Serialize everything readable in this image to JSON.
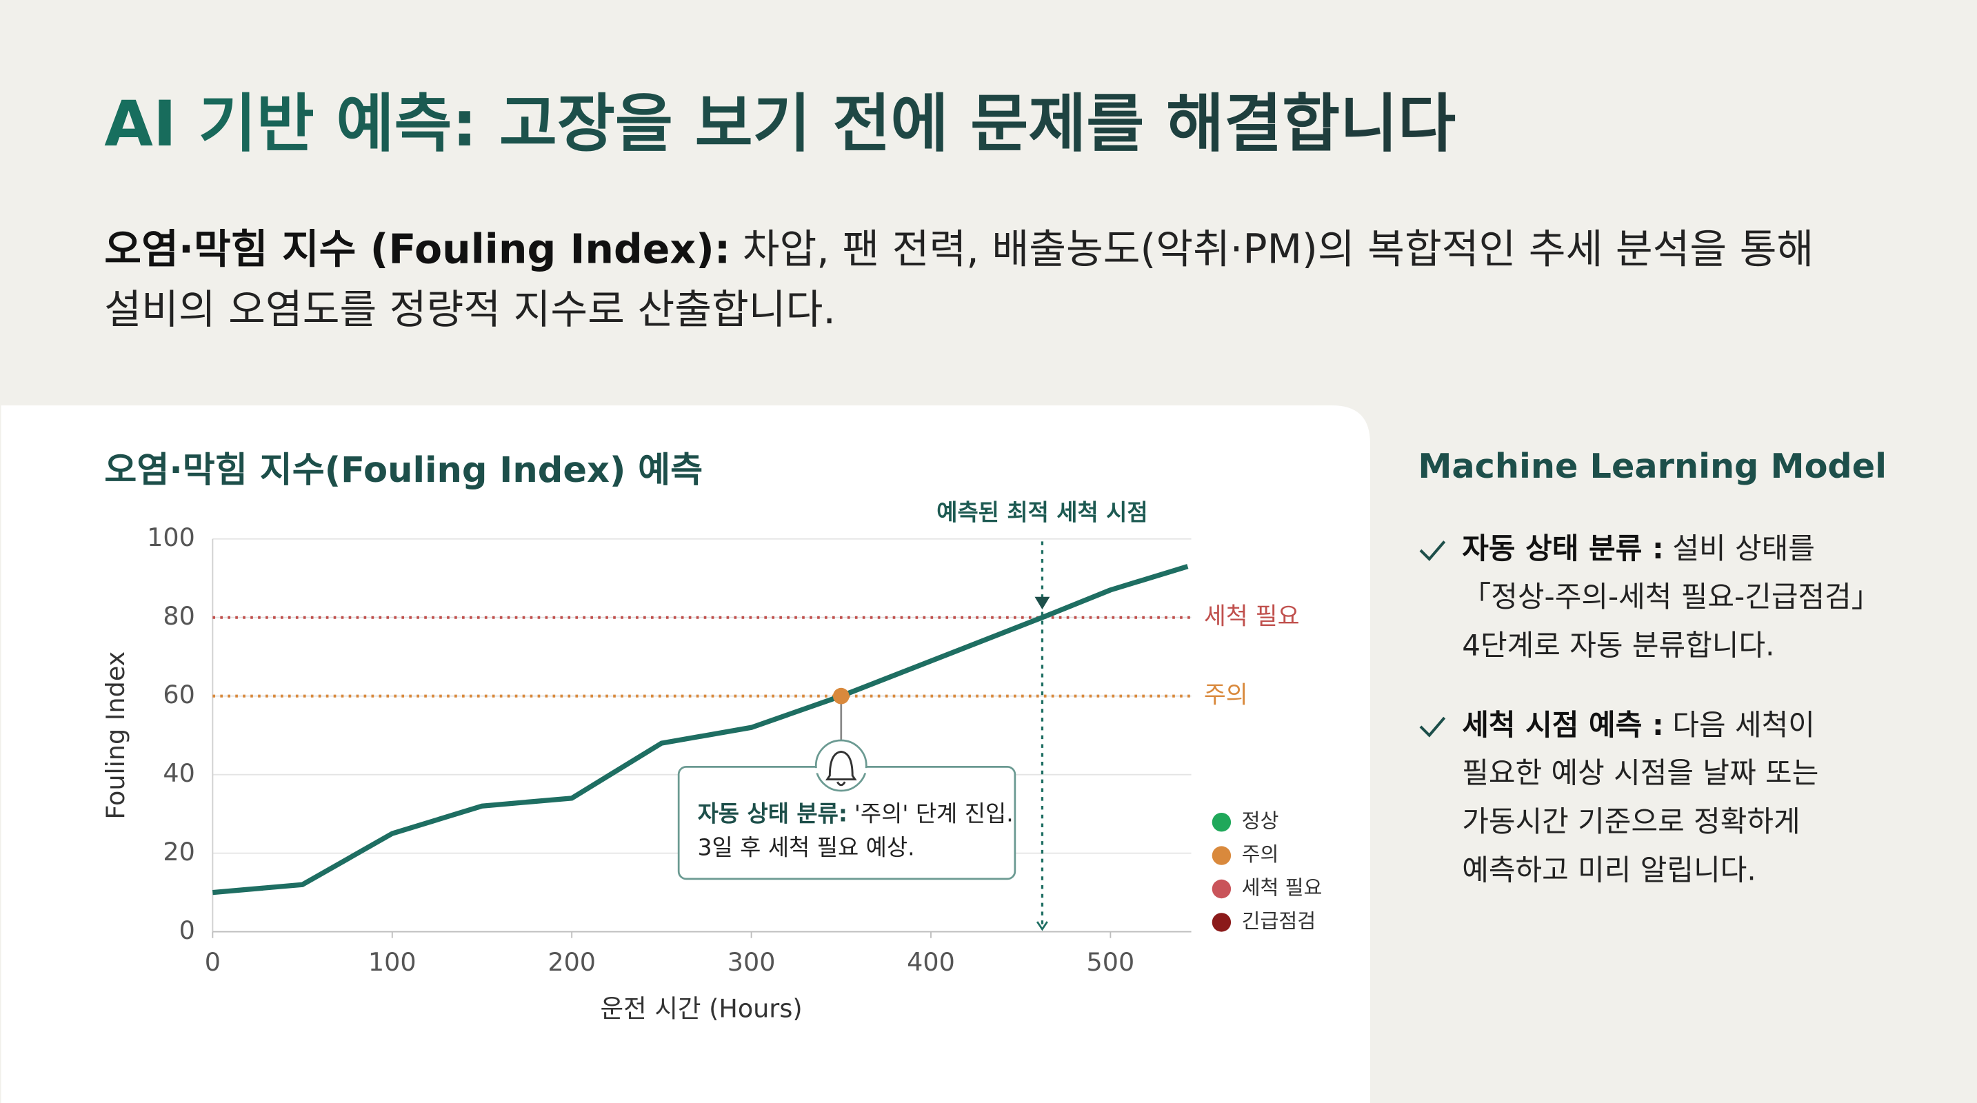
{
  "header": {
    "title": "AI 기반 예측: 고장을 보기 전에 문제를 해결합니다",
    "description": {
      "bold": "오염·막힘 지수 (Fouling Index):",
      "lines": [
        "차압, 팬 전력, 배출농도(악취·PM)의 복합적인 추세 분석을 통해",
        "설비의 오염도를 정량적 지수로 산출합니다."
      ]
    }
  },
  "chart_data": {
    "type": "line",
    "title": "오염·막힘 지수(Fouling Index) 예측",
    "x_label": "운전 시간 (Hours)",
    "y_label": "Fouling Index",
    "x": [
      0,
      50,
      100,
      150,
      200,
      250,
      300,
      350,
      462,
      500,
      543
    ],
    "values": [
      10,
      12,
      25,
      32,
      34,
      48,
      52,
      60,
      80,
      87,
      93
    ],
    "color": "#1e6e62",
    "xlim": [
      0,
      545
    ],
    "xticks": [
      0,
      100,
      200,
      300,
      400,
      500
    ],
    "ylim": [
      0,
      100
    ],
    "yticks": [
      0,
      20,
      40,
      60,
      80,
      100
    ],
    "grid": true,
    "thresholds": [
      {
        "value": 80,
        "label": "세척 필요",
        "color": "#c0504d"
      },
      {
        "value": 60,
        "label": "주의",
        "color": "#d9893c"
      }
    ],
    "optimal": {
      "x": 462,
      "label": "예측된 최적 세척 시점"
    },
    "alert": {
      "x": 350,
      "y": 60,
      "color": "#d9893c",
      "bold": "자동 상태 분류:",
      "lines": [
        "'주의' 단계 진입.",
        "3일 후 세척 필요 예상."
      ]
    },
    "legend": [
      {
        "name": "정상",
        "color": "#1fa85a"
      },
      {
        "name": "주의",
        "color": "#d9893c"
      },
      {
        "name": "세척 필요",
        "color": "#c9545a"
      },
      {
        "name": "긴급점검",
        "color": "#8b1a1a"
      }
    ]
  },
  "panel": {
    "title": "Machine Learning Model",
    "items": [
      {
        "bold": "자동 상태 분류 :",
        "lines": [
          "설비 상태를",
          "「정상-주의-세척 필요-긴급점검」",
          "4단계로 자동 분류합니다."
        ]
      },
      {
        "bold": "세척 시점 예측 :",
        "lines": [
          "다음 세척이",
          "필요한 예상 시점을 날짜 또는",
          "가동시간 기준으로 정확하게",
          "예측하고 미리 알립니다."
        ]
      }
    ]
  }
}
